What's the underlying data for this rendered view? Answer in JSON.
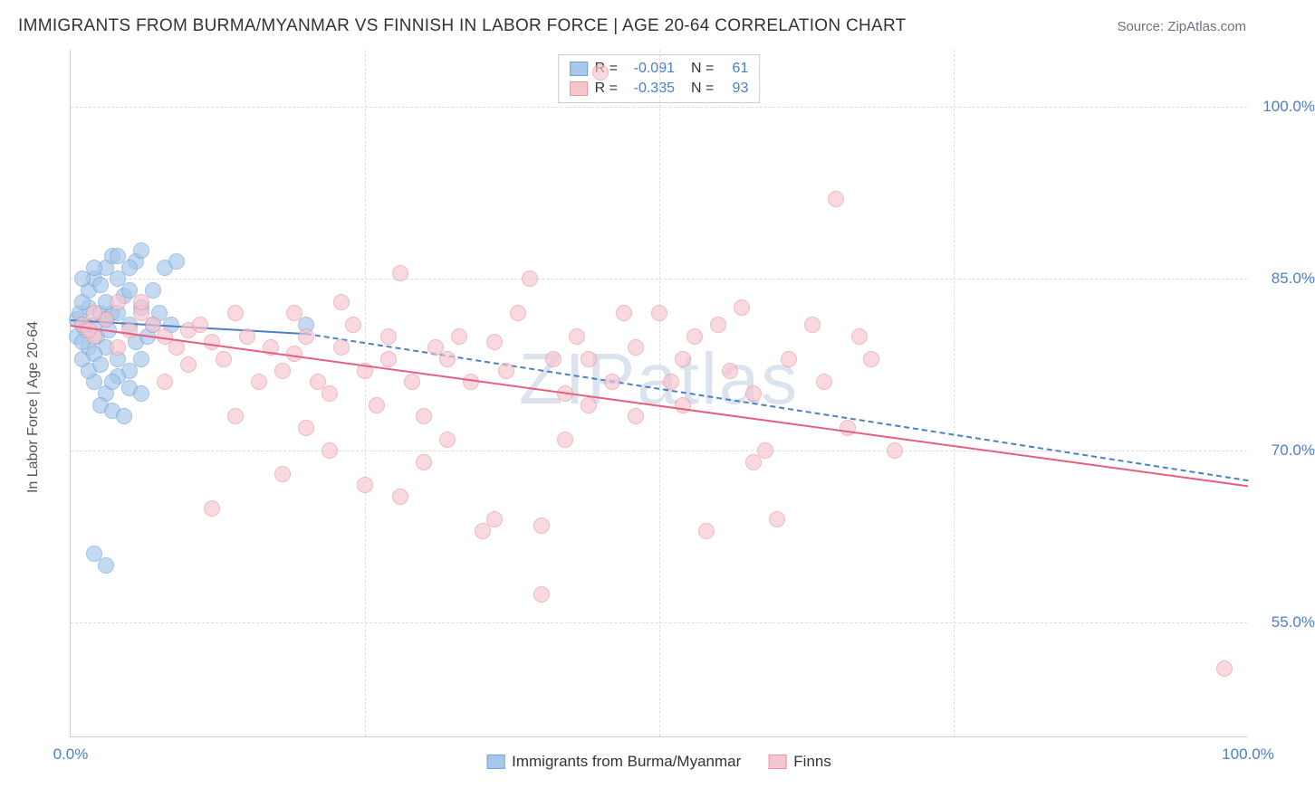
{
  "title": "IMMIGRANTS FROM BURMA/MYANMAR VS FINNISH IN LABOR FORCE | AGE 20-64 CORRELATION CHART",
  "source": "Source: ZipAtlas.com",
  "watermark": "ZIPatlas",
  "chart": {
    "type": "scatter",
    "y_label": "In Labor Force | Age 20-64",
    "x_range": [
      0,
      100
    ],
    "y_range": [
      45,
      105
    ],
    "y_ticks": [
      55.0,
      70.0,
      85.0,
      100.0
    ],
    "y_tick_labels": [
      "55.0%",
      "70.0%",
      "85.0%",
      "100.0%"
    ],
    "x_ticks": [
      0,
      25,
      50,
      75,
      100
    ],
    "x_tick_labels": [
      "0.0%",
      "",
      "",
      "",
      "100.0%"
    ],
    "background_color": "#ffffff",
    "grid_color": "#dddddd",
    "axis_color": "#cccccc",
    "series": [
      {
        "name": "Immigrants from Burma/Myanmar",
        "fill": "#a7c7ea",
        "stroke": "#6fa3d9",
        "line_color": "#4a7fc9",
        "R": "-0.091",
        "N": "61",
        "points": [
          [
            0.5,
            81.5
          ],
          [
            0.8,
            82
          ],
          [
            1,
            81
          ],
          [
            1.2,
            80.5
          ],
          [
            1.5,
            82.5
          ],
          [
            1,
            83
          ],
          [
            2,
            81
          ],
          [
            2.2,
            80
          ],
          [
            2.5,
            82
          ],
          [
            3,
            81.5
          ],
          [
            3.2,
            80.5
          ],
          [
            3.5,
            82
          ],
          [
            1.5,
            84
          ],
          [
            2,
            85
          ],
          [
            2.5,
            84.5
          ],
          [
            3,
            86
          ],
          [
            3.5,
            87
          ],
          [
            4,
            85
          ],
          [
            4.5,
            83.5
          ],
          [
            5,
            84
          ],
          [
            5.5,
            86.5
          ],
          [
            6,
            87.5
          ],
          [
            7,
            84
          ],
          [
            8,
            86
          ],
          [
            9,
            86.5
          ],
          [
            3,
            79
          ],
          [
            4,
            78
          ],
          [
            5,
            77
          ],
          [
            5.5,
            79.5
          ],
          [
            6,
            78
          ],
          [
            2,
            76
          ],
          [
            3,
            75
          ],
          [
            4,
            76.5
          ],
          [
            5,
            75.5
          ],
          [
            6,
            75
          ],
          [
            2.5,
            74
          ],
          [
            3.5,
            73.5
          ],
          [
            4.5,
            73
          ],
          [
            2,
            61
          ],
          [
            3,
            60
          ],
          [
            1,
            78
          ],
          [
            1.5,
            79
          ],
          [
            2,
            78.5
          ],
          [
            0.5,
            80
          ],
          [
            1,
            79.5
          ],
          [
            6.5,
            80
          ],
          [
            7,
            81
          ],
          [
            7.5,
            82
          ],
          [
            8.5,
            81
          ],
          [
            1,
            85
          ],
          [
            2,
            86
          ],
          [
            4,
            87
          ],
          [
            5,
            86
          ],
          [
            3,
            83
          ],
          [
            4,
            82
          ],
          [
            5,
            81
          ],
          [
            6,
            82.5
          ],
          [
            1.5,
            77
          ],
          [
            2.5,
            77.5
          ],
          [
            3.5,
            76
          ],
          [
            20,
            81
          ]
        ],
        "trend": {
          "x1": 0,
          "y1": 81.5,
          "x2": 20,
          "y2": 80.3
        },
        "trend_dashed_ext": {
          "x1": 20,
          "y1": 80.3,
          "x2": 100,
          "y2": 67.5
        }
      },
      {
        "name": "Finns",
        "fill": "#f7c5ce",
        "stroke": "#e794a4",
        "line_color": "#e75f7d",
        "R": "-0.335",
        "N": "93",
        "points": [
          [
            1,
            81
          ],
          [
            2,
            80
          ],
          [
            3,
            81.5
          ],
          [
            4,
            83
          ],
          [
            5,
            80.5
          ],
          [
            6,
            82
          ],
          [
            7,
            81
          ],
          [
            8,
            80
          ],
          [
            9,
            79
          ],
          [
            10,
            80.5
          ],
          [
            11,
            81
          ],
          [
            12,
            79.5
          ],
          [
            13,
            78
          ],
          [
            14,
            82
          ],
          [
            15,
            80
          ],
          [
            16,
            76
          ],
          [
            17,
            79
          ],
          [
            18,
            77
          ],
          [
            19,
            78.5
          ],
          [
            20,
            80
          ],
          [
            21,
            76
          ],
          [
            22,
            75
          ],
          [
            23,
            79
          ],
          [
            24,
            81
          ],
          [
            25,
            77
          ],
          [
            26,
            74
          ],
          [
            27,
            78
          ],
          [
            28,
            85.5
          ],
          [
            29,
            76
          ],
          [
            30,
            73
          ],
          [
            12,
            65
          ],
          [
            18,
            68
          ],
          [
            20,
            72
          ],
          [
            22,
            70
          ],
          [
            25,
            67
          ],
          [
            28,
            66
          ],
          [
            30,
            69
          ],
          [
            32,
            78
          ],
          [
            33,
            80
          ],
          [
            34,
            76
          ],
          [
            35,
            63
          ],
          [
            36,
            79.5
          ],
          [
            37,
            77
          ],
          [
            38,
            82
          ],
          [
            39,
            85
          ],
          [
            40,
            63.5
          ],
          [
            41,
            78
          ],
          [
            42,
            75
          ],
          [
            43,
            80
          ],
          [
            44,
            78
          ],
          [
            45,
            103
          ],
          [
            46,
            76
          ],
          [
            47,
            82
          ],
          [
            48,
            73
          ],
          [
            40,
            57.5
          ],
          [
            50,
            82
          ],
          [
            51,
            76
          ],
          [
            52,
            78
          ],
          [
            53,
            80
          ],
          [
            54,
            63
          ],
          [
            55,
            81
          ],
          [
            56,
            77
          ],
          [
            57,
            82.5
          ],
          [
            58,
            75
          ],
          [
            59,
            70
          ],
          [
            60,
            64
          ],
          [
            61,
            78
          ],
          [
            63,
            81
          ],
          [
            64,
            76
          ],
          [
            65,
            92
          ],
          [
            66,
            72
          ],
          [
            67,
            80
          ],
          [
            68,
            78
          ],
          [
            58,
            69
          ],
          [
            42,
            71
          ],
          [
            36,
            64
          ],
          [
            32,
            71
          ],
          [
            14,
            73
          ],
          [
            8,
            76
          ],
          [
            10,
            77.5
          ],
          [
            6,
            83
          ],
          [
            4,
            79
          ],
          [
            2,
            82
          ],
          [
            1.5,
            80.5
          ],
          [
            98,
            51
          ],
          [
            70,
            70
          ],
          [
            48,
            79
          ],
          [
            52,
            74
          ],
          [
            44,
            74
          ],
          [
            19,
            82
          ],
          [
            23,
            83
          ],
          [
            27,
            80
          ],
          [
            31,
            79
          ]
        ],
        "trend": {
          "x1": 0,
          "y1": 81,
          "x2": 100,
          "y2": 67
        }
      }
    ]
  },
  "legend_bottom": [
    {
      "label": "Immigrants from Burma/Myanmar",
      "fill": "#a7c7ea",
      "stroke": "#6fa3d9"
    },
    {
      "label": "Finns",
      "fill": "#f7c5ce",
      "stroke": "#e794a4"
    }
  ]
}
